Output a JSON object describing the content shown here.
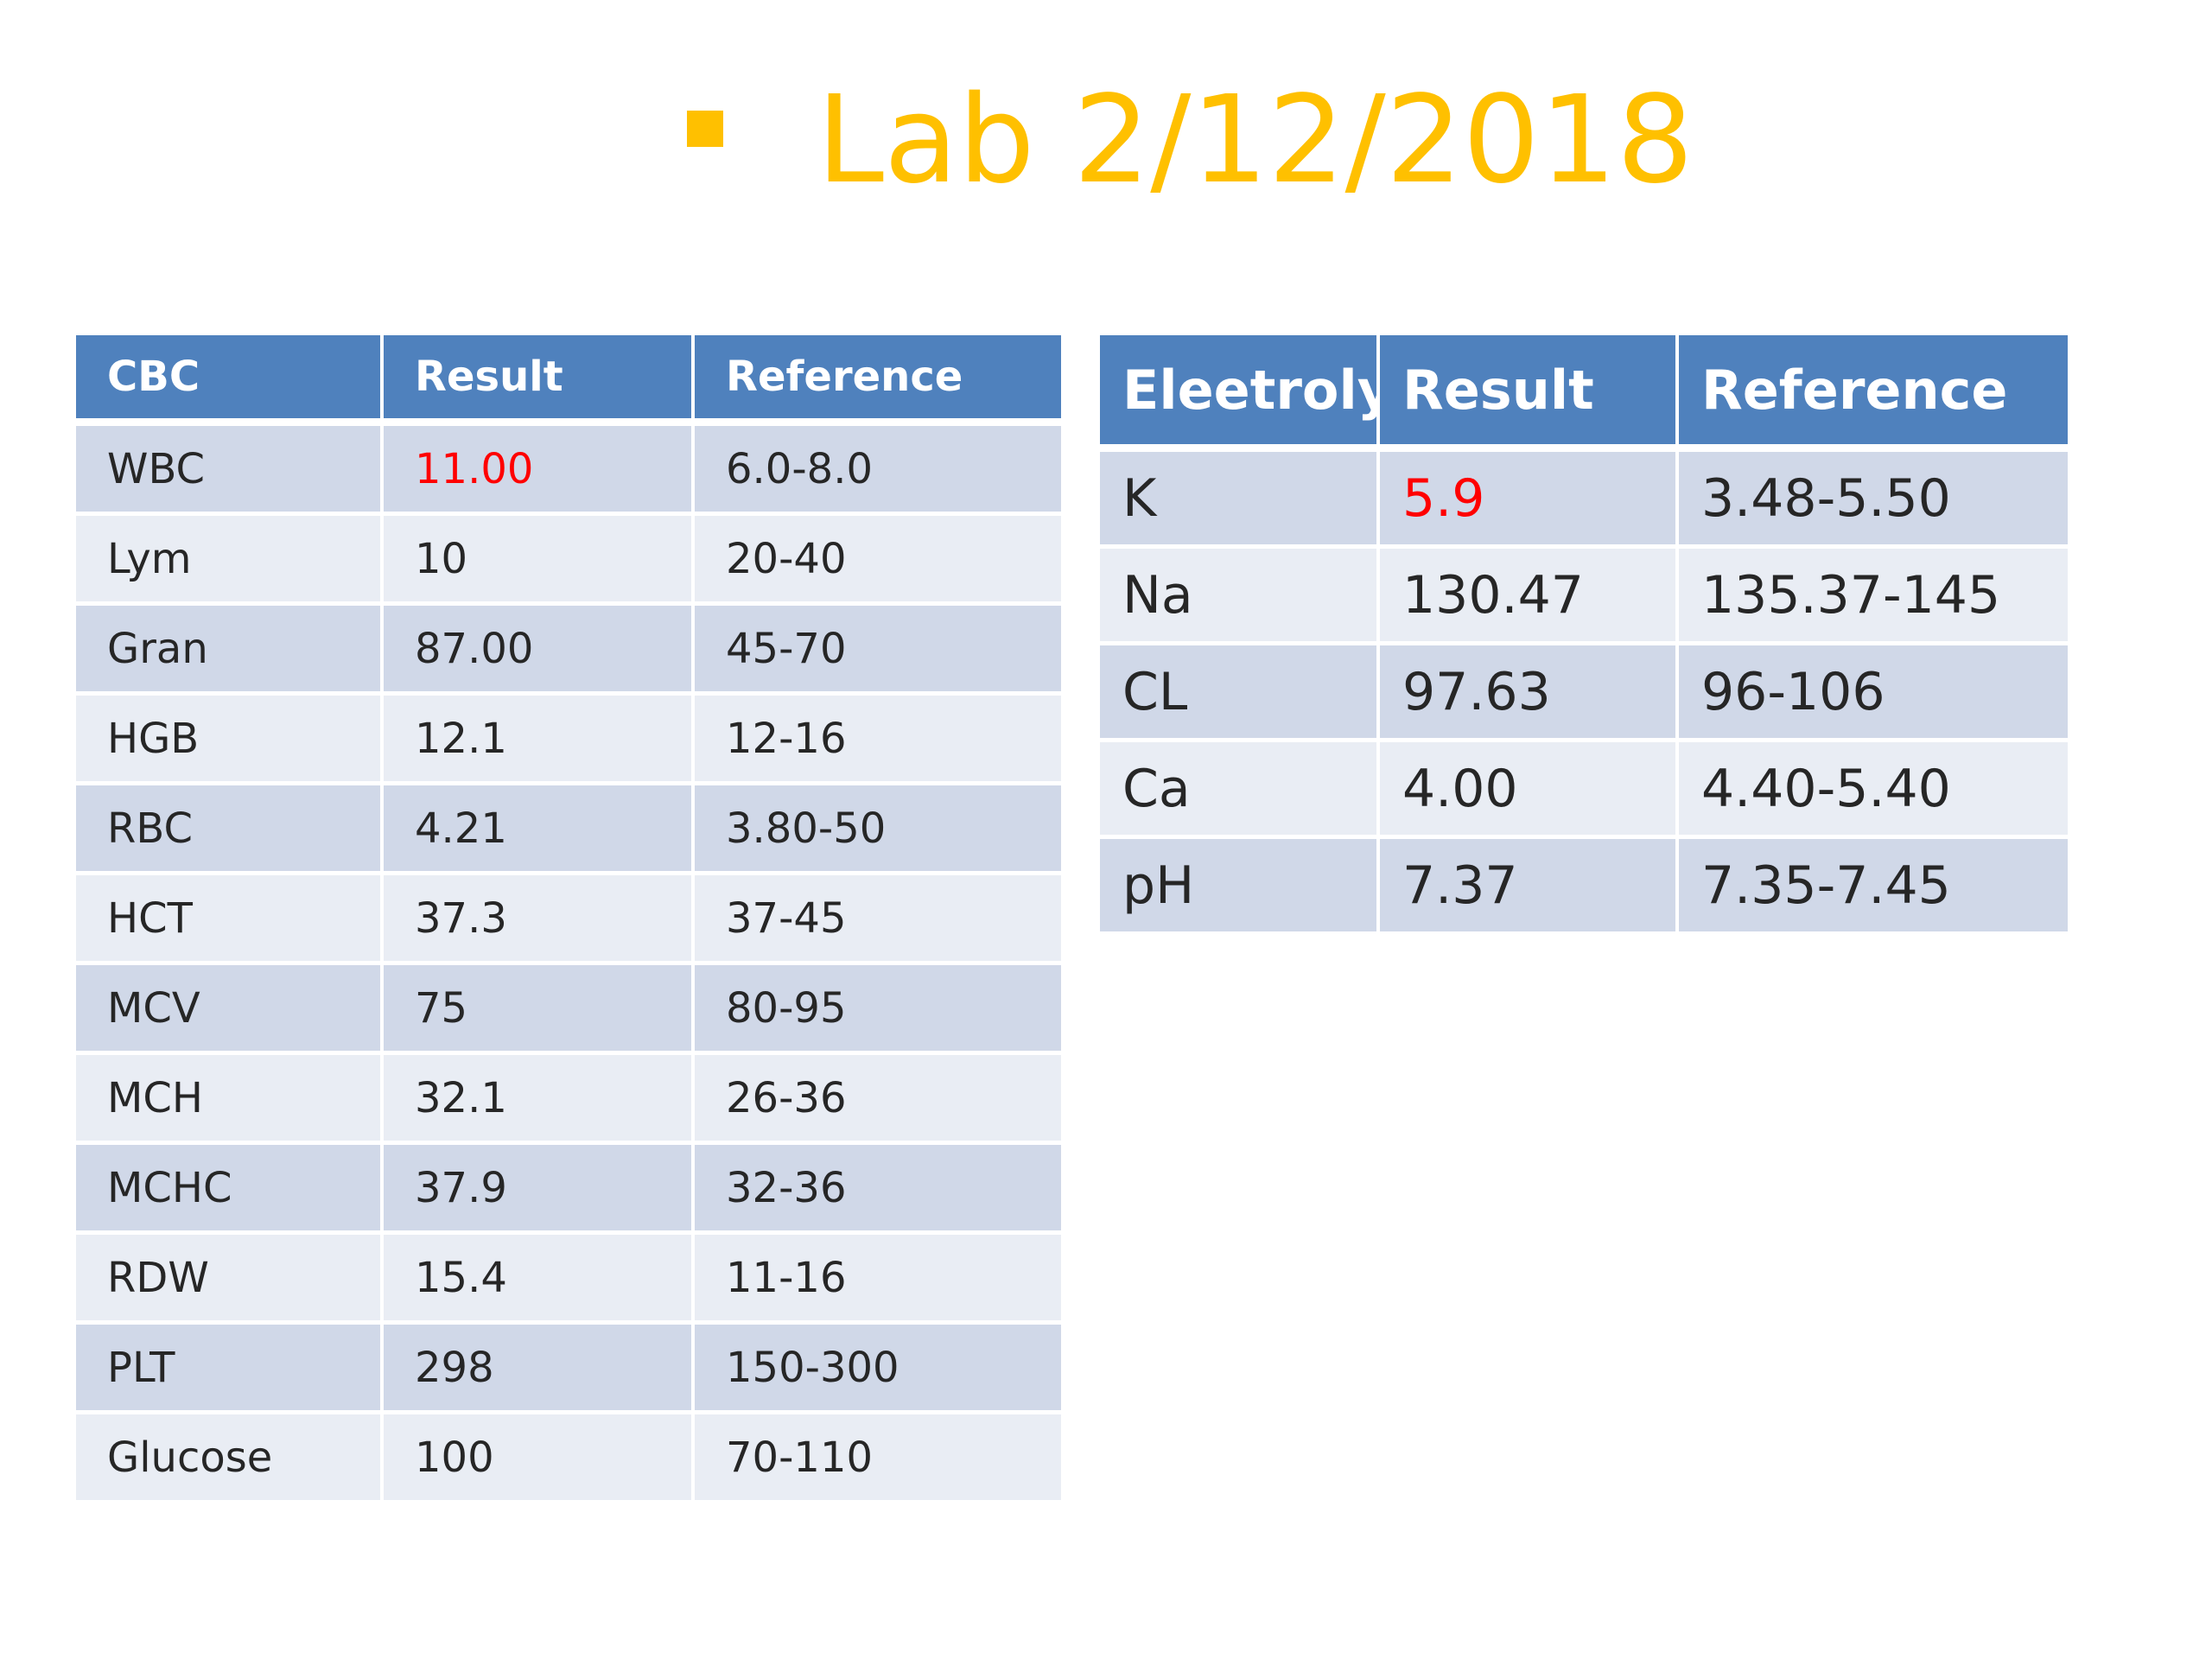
{
  "title": {
    "bullet_icon": "square-bullet-icon",
    "text": "Lab 2/12/2018",
    "color": "#FFC000"
  },
  "colors": {
    "header_bg": "#4F81BD",
    "row_dark": "#D0D8E8",
    "row_light": "#E9EDF4",
    "flag_text": "#FF0000"
  },
  "cbc_table": {
    "headers": [
      "CBC",
      "Result",
      "Reference"
    ],
    "rows": [
      {
        "test": "WBC",
        "result": "11.00",
        "reference": "6.0-8.0",
        "flagged": true
      },
      {
        "test": "Lym",
        "result": "10",
        "reference": "20-40",
        "flagged": false
      },
      {
        "test": "Gran",
        "result": "87.00",
        "reference": "45-70",
        "flagged": false
      },
      {
        "test": "HGB",
        "result": "12.1",
        "reference": "12-16",
        "flagged": false
      },
      {
        "test": "RBC",
        "result": "4.21",
        "reference": "3.80-50",
        "flagged": false
      },
      {
        "test": "HCT",
        "result": "37.3",
        "reference": "37-45",
        "flagged": false
      },
      {
        "test": "MCV",
        "result": "75",
        "reference": "80-95",
        "flagged": false
      },
      {
        "test": "MCH",
        "result": "32.1",
        "reference": "26-36",
        "flagged": false
      },
      {
        "test": "MCHC",
        "result": "37.9",
        "reference": "32-36",
        "flagged": false
      },
      {
        "test": "RDW",
        "result": "15.4",
        "reference": "11-16",
        "flagged": false
      },
      {
        "test": "PLT",
        "result": "298",
        "reference": "150-300",
        "flagged": false
      },
      {
        "test": "Glucose",
        "result": "100",
        "reference": "70-110",
        "flagged": false
      }
    ]
  },
  "electrolyte_table": {
    "headers": [
      "Eleetroly",
      "Result",
      "Reference"
    ],
    "rows": [
      {
        "test": "K",
        "result": "5.9",
        "reference": "3.48-5.50",
        "flagged": true
      },
      {
        "test": "Na",
        "result": "130.47",
        "reference": "135.37-145",
        "flagged": false
      },
      {
        "test": "CL",
        "result": "97.63",
        "reference": "96-106",
        "flagged": false
      },
      {
        "test": "Ca",
        "result": "4.00",
        "reference": "4.40-5.40",
        "flagged": false
      },
      {
        "test": "pH",
        "result": "7.37",
        "reference": "7.35-7.45",
        "flagged": false
      }
    ]
  }
}
